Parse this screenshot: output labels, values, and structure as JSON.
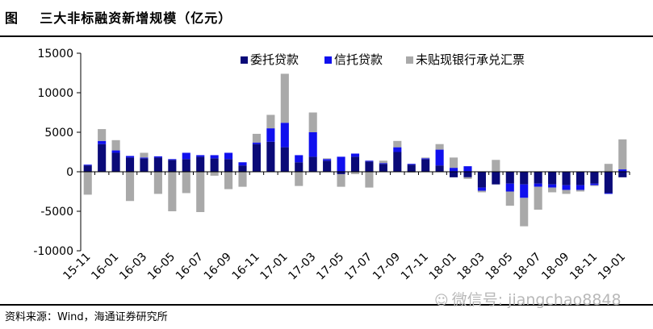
{
  "header": {
    "title": "图    三大非标融资新增规模（亿元）"
  },
  "footer": {
    "source": "资料来源：Wind，海通证券研究所",
    "watermark": "微信号: jiangchao8848"
  },
  "colors": {
    "entrusted": "#0a0a78",
    "trust": "#1010ee",
    "acceptance": "#a9a9a9"
  },
  "chart_data": {
    "type": "bar",
    "stacked": true,
    "title": "三大非标融资新增规模（亿元）",
    "xlabel": "",
    "ylabel": "",
    "ylim": [
      -10000,
      15000
    ],
    "yticks": [
      15000,
      10000,
      5000,
      0,
      -5000,
      -10000
    ],
    "grid": false,
    "legend_position": "top-right",
    "tick_labels": [
      "15-11",
      "16-01",
      "16-03",
      "16-05",
      "16-07",
      "16-09",
      "16-11",
      "17-01",
      "17-03",
      "17-05",
      "17-07",
      "17-09",
      "17-11",
      "18-01",
      "18-03",
      "18-05",
      "18-07",
      "18-09",
      "18-11",
      "19-01"
    ],
    "categories": [
      "15-11",
      "15-12",
      "16-01",
      "16-02",
      "16-03",
      "16-04",
      "16-05",
      "16-06",
      "16-07",
      "16-08",
      "16-09",
      "16-10",
      "16-11",
      "16-12",
      "17-01",
      "17-02",
      "17-03",
      "17-04",
      "17-05",
      "17-06",
      "17-07",
      "17-08",
      "17-09",
      "17-10",
      "17-11",
      "17-12",
      "18-01",
      "18-02",
      "18-03",
      "18-04",
      "18-05",
      "18-06",
      "18-07",
      "18-08",
      "18-09",
      "18-10",
      "18-11",
      "18-12",
      "19-01"
    ],
    "series": [
      {
        "name": "委托贷款",
        "values": [
          800,
          3500,
          2400,
          1800,
          1700,
          1800,
          1500,
          1600,
          1900,
          1700,
          1600,
          800,
          3500,
          3800,
          3100,
          1200,
          1900,
          1400,
          -300,
          1900,
          1300,
          1000,
          2500,
          900,
          1600,
          800,
          -700,
          -700,
          -2000,
          -1600,
          -1500,
          -1600,
          -1500,
          -1600,
          -1700,
          -1700,
          -1500,
          -2700,
          -700
        ]
      },
      {
        "name": "信托贷款",
        "values": [
          100,
          400,
          300,
          200,
          100,
          150,
          100,
          800,
          200,
          400,
          800,
          400,
          200,
          1700,
          3100,
          900,
          3100,
          200,
          1900,
          400,
          100,
          100,
          600,
          100,
          100,
          2000,
          500,
          700,
          -400,
          0,
          -1000,
          -1700,
          -400,
          -400,
          -600,
          -600,
          -200,
          -100,
          300
        ]
      },
      {
        "name": "未贴现银行承兑汇票",
        "values": [
          -2900,
          1500,
          1300,
          -3700,
          600,
          -2800,
          -5000,
          -2700,
          -5100,
          -500,
          -2200,
          -1900,
          1100,
          1700,
          6200,
          -1800,
          2500,
          100,
          -1600,
          -300,
          -2000,
          300,
          800,
          -100,
          100,
          700,
          1300,
          -200,
          -200,
          1500,
          -1800,
          -3600,
          -2900,
          -600,
          -500,
          -200,
          -100,
          1000,
          3800
        ]
      }
    ]
  }
}
